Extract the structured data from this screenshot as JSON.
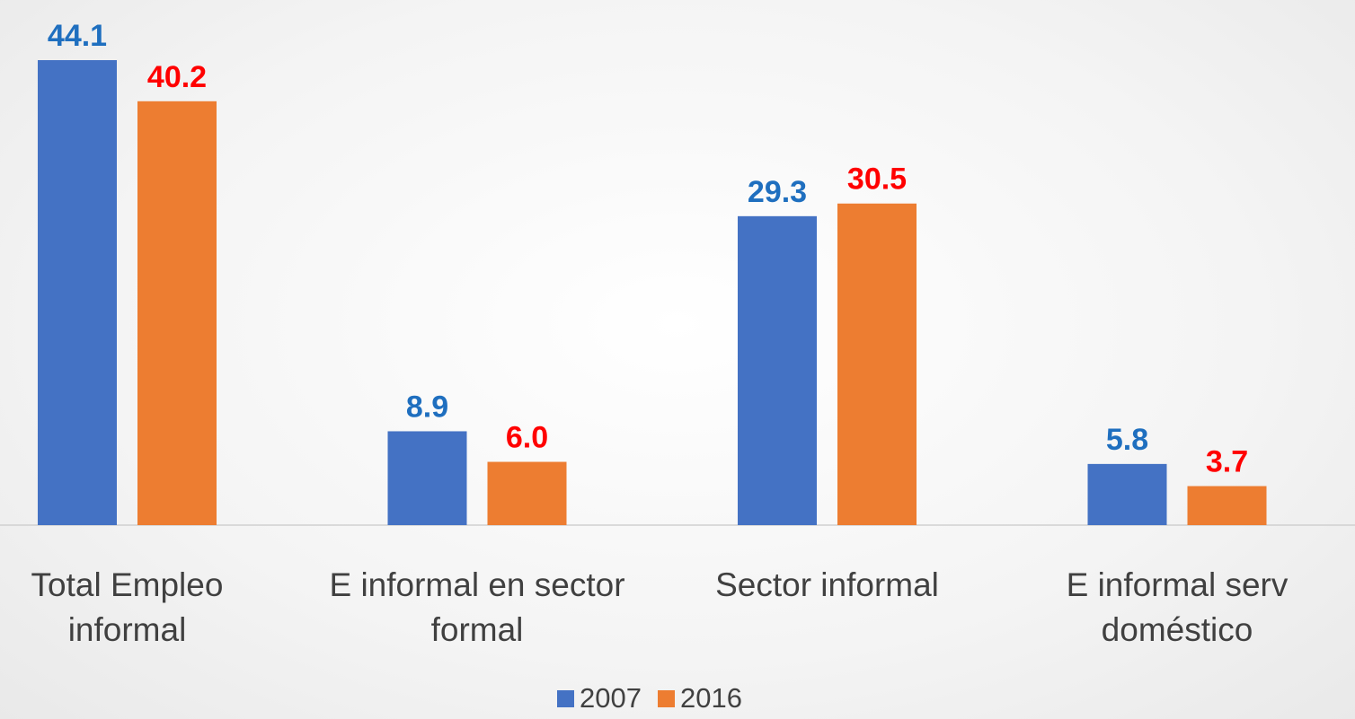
{
  "chart_data": {
    "type": "bar",
    "categories": [
      "Total Empleo informal",
      "E informal en sector formal",
      "Sector informal",
      "E informal serv doméstico"
    ],
    "series": [
      {
        "name": "2007",
        "color": "#4472c4",
        "label_color": "#1f6fbf",
        "values": [
          44.1,
          8.9,
          29.3,
          5.8
        ],
        "value_labels": [
          "44.1",
          "8.9",
          "29.3",
          "5.8"
        ]
      },
      {
        "name": "2016",
        "color": "#ed7d31",
        "label_color": "#ff0000",
        "values": [
          40.2,
          6.0,
          30.5,
          3.7
        ],
        "value_labels": [
          "40.2",
          "6.0",
          "30.5",
          "3.7"
        ]
      }
    ],
    "legend": "bottom"
  }
}
